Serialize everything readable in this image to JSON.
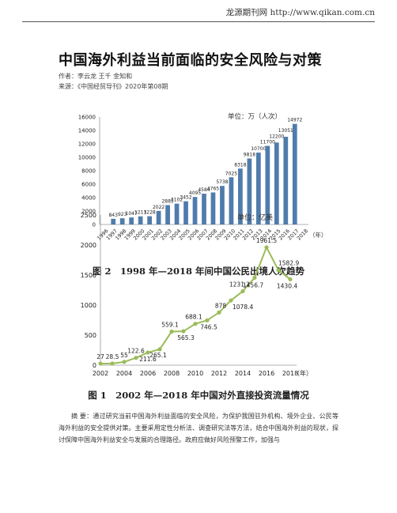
{
  "header": {
    "site": "龙源期刊网 http://www.qikan.com.cn"
  },
  "article": {
    "title": "中国海外利益当前面临的安全风险与对策",
    "author": "作者：李云龙 王千 金知和",
    "source": "来源：《中国经贸导刊》2020年第08期"
  },
  "figure2": {
    "caption": "图 2　1998 年—2018 年间中国公民出境人次趋势",
    "chart_data": {
      "type": "bar",
      "unit": "单位：万（人次）",
      "x_unit": "（年）",
      "categories": [
        "1996",
        "1997",
        "1998",
        "1999",
        "2000",
        "2001",
        "2002",
        "2003",
        "2004",
        "2005",
        "2006",
        "2007",
        "2008",
        "2009",
        "2010",
        "2011",
        "2012",
        "2013",
        "2014",
        "2015",
        "2016",
        "2017",
        "2018"
      ],
      "values": [
        null,
        843,
        923,
        1047,
        1213,
        1228,
        2022,
        2885,
        3102,
        3452,
        4095,
        4584,
        4765,
        5738,
        7025,
        8318,
        9818,
        10700,
        11700,
        12200,
        13051,
        14972,
        null
      ],
      "value_labels": [
        "",
        "843",
        "923",
        "1047",
        "1213",
        "1228",
        "2022",
        "2885",
        "3102",
        "3452",
        "4095",
        "4584",
        "4765",
        "5738",
        "7025",
        "8318",
        "9818",
        "10700",
        "11700",
        "12200",
        "13051",
        "14972",
        ""
      ],
      "y_ticks": [
        "0",
        "2000",
        "4000",
        "6000",
        "8000",
        "10000",
        "12000",
        "14000",
        "16000"
      ],
      "ylim": [
        0,
        16000
      ],
      "bar_color": "#4f7cac",
      "grid": false
    }
  },
  "figure1": {
    "caption": "图 1　2002 年—2018 年中国对外直接投资流量情况",
    "chart_data": {
      "type": "line",
      "unit": "单位：亿美",
      "x_unit": "（年）",
      "x": [
        2002,
        2003,
        2004,
        2005,
        2006,
        2007,
        2008,
        2009,
        2010,
        2011,
        2012,
        2013,
        2014,
        2015,
        2016,
        2017,
        2018
      ],
      "y": [
        27,
        28.5,
        55,
        122.6,
        211.6,
        265.1,
        559.1,
        565.3,
        688.1,
        746.5,
        878,
        1078.4,
        1231.2,
        1456.7,
        1961.5,
        1582.9,
        1430.4
      ],
      "labels": [
        "27",
        "28.5",
        "55",
        "122.6",
        "211.6",
        "265.1",
        "559.1",
        "565.3",
        "688.1",
        "746.5",
        "878",
        "1078.4",
        "1231.2",
        "1456.7",
        "1961.5",
        "1582.9",
        "1430.4"
      ],
      "x_ticks": [
        "2002",
        "2004",
        "2006",
        "2008",
        "2010",
        "2012",
        "2014",
        "2016",
        "2018"
      ],
      "y_ticks": [
        "0",
        "500",
        "1000",
        "1500",
        "2000",
        "2500"
      ],
      "ylim": [
        0,
        2500
      ],
      "xlim": [
        2002,
        2018
      ],
      "line_color": "#9bbb59",
      "grid": false
    }
  },
  "abstract": {
    "text": "摘 要：通过研究当前中国海外利益面临的安全风险，为保护我国驻外机构、境外企业、公民等海外利益的安全提供对策。主要采用定性分析法、调查研究法等方法，结合中国海外利益的现状，探讨保障中国海外利益安全与发展的合理路径。政府应做好风险预警工作，加强与"
  }
}
